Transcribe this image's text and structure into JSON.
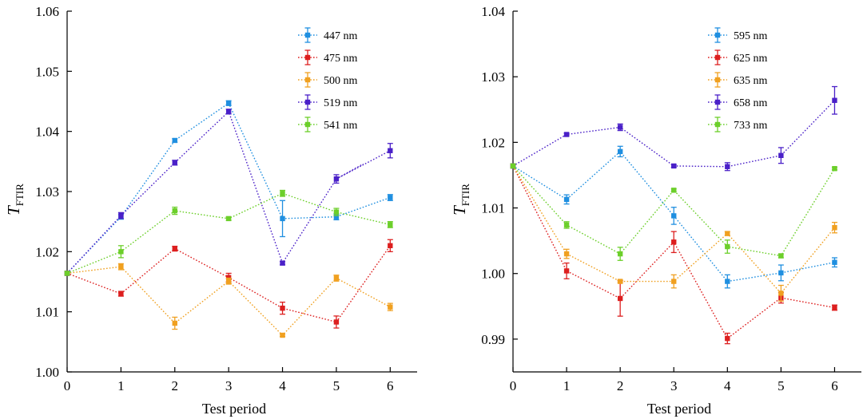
{
  "chart_data": [
    {
      "type": "line",
      "title": "",
      "xlabel": "Test period",
      "ylabel_main": "T",
      "ylabel_sub": "FTIR",
      "x": [
        0,
        1,
        2,
        3,
        4,
        5,
        6
      ],
      "xlim": [
        0,
        6.5
      ],
      "ylim": [
        1.0,
        1.06
      ],
      "yticks": [
        1.0,
        1.01,
        1.02,
        1.03,
        1.04,
        1.05,
        1.06
      ],
      "ytick_labels": [
        "1.00",
        "1.01",
        "1.02",
        "1.03",
        "1.04",
        "1.05",
        "1.06"
      ],
      "xtick_labels": [
        "0",
        "1",
        "2",
        "3",
        "4",
        "5",
        "6"
      ],
      "legend_position": "top-right",
      "grid": false,
      "series": [
        {
          "name": "447 nm",
          "color": "#1f8fe0",
          "values": [
            1.0164,
            1.0258,
            1.0385,
            1.0447,
            1.0255,
            1.0258,
            1.029
          ],
          "errors": [
            0.0003,
            0.0004,
            0.0003,
            0.0004,
            0.003,
            0.0005,
            0.0005
          ]
        },
        {
          "name": "475 nm",
          "color": "#dd1f1f",
          "values": [
            1.0164,
            1.013,
            1.0205,
            1.0157,
            1.0106,
            1.0083,
            1.021
          ],
          "errors": [
            0.0003,
            0.0004,
            0.0004,
            0.0007,
            0.001,
            0.001,
            0.001
          ]
        },
        {
          "name": "500 nm",
          "color": "#f0a020",
          "values": [
            1.0164,
            1.0175,
            1.0081,
            1.0151,
            1.0061,
            1.0156,
            1.0108
          ],
          "errors": [
            0.0003,
            0.0005,
            0.001,
            0.0005,
            0.0002,
            0.0005,
            0.0006
          ]
        },
        {
          "name": "519 nm",
          "color": "#4a20c8",
          "values": [
            1.0164,
            1.026,
            1.0348,
            1.0433,
            1.0181,
            1.0321,
            1.0368
          ],
          "errors": [
            0.0003,
            0.0005,
            0.0004,
            0.0004,
            0.0003,
            0.0007,
            0.0012
          ],
          "extra_segment": [
            [
              5,
              1.0321
            ],
            [
              5.5,
              1.0346
            ]
          ]
        },
        {
          "name": "541 nm",
          "color": "#6ccf2a",
          "values": [
            1.0164,
            1.02,
            1.0268,
            1.0255,
            1.0297,
            1.0266,
            1.0245
          ],
          "errors": [
            0.0003,
            0.001,
            0.0006,
            0.0003,
            0.0005,
            0.0006,
            0.0005
          ]
        }
      ]
    },
    {
      "type": "line",
      "title": "",
      "xlabel": "Test period",
      "ylabel_main": "T",
      "ylabel_sub": "FTIR",
      "x": [
        0,
        1,
        2,
        3,
        4,
        5,
        6
      ],
      "xlim": [
        0,
        6.5
      ],
      "ylim": [
        0.985,
        1.04
      ],
      "yticks": [
        0.99,
        1.0,
        1.01,
        1.02,
        1.03,
        1.04
      ],
      "ytick_labels": [
        "0.99",
        "1.00",
        "1.01",
        "1.02",
        "1.03",
        "1.04"
      ],
      "xtick_labels": [
        "0",
        "1",
        "2",
        "3",
        "4",
        "5",
        "6"
      ],
      "legend_position": "top-right",
      "grid": false,
      "series": [
        {
          "name": "595 nm",
          "color": "#1f8fe0",
          "values": [
            1.0164,
            1.0113,
            1.0186,
            1.0088,
            0.9988,
            1.0001,
            1.0017
          ],
          "errors": [
            0.0003,
            0.0007,
            0.0008,
            0.0013,
            0.001,
            0.0012,
            0.0007
          ]
        },
        {
          "name": "625 nm",
          "color": "#dd1f1f",
          "values": [
            1.0164,
            1.0004,
            0.9962,
            1.0048,
            0.9901,
            0.9963,
            0.9948
          ],
          "errors": [
            0.0003,
            0.0012,
            0.0027,
            0.0016,
            0.0008,
            0.0008,
            0.0004
          ]
        },
        {
          "name": "635 nm",
          "color": "#f0a020",
          "values": [
            1.0164,
            1.003,
            0.9988,
            0.9988,
            1.0061,
            0.997,
            1.007
          ],
          "errors": [
            0.0003,
            0.0007,
            0.0002,
            0.001,
            0.0003,
            0.0012,
            0.0008
          ]
        },
        {
          "name": "658 nm",
          "color": "#4a20c8",
          "values": [
            1.0164,
            1.0212,
            1.0223,
            1.0164,
            1.0163,
            1.018,
            1.0264
          ],
          "errors": [
            0.0003,
            0.0002,
            0.0005,
            0.0002,
            0.0006,
            0.0012,
            0.0021
          ]
        },
        {
          "name": "733 nm",
          "color": "#6ccf2a",
          "values": [
            1.0164,
            1.0074,
            1.003,
            1.0127,
            1.0041,
            1.0027,
            1.016
          ],
          "errors": [
            0.0003,
            0.0005,
            0.001,
            0.0002,
            0.001,
            0.0003,
            0.0002
          ]
        }
      ]
    }
  ]
}
